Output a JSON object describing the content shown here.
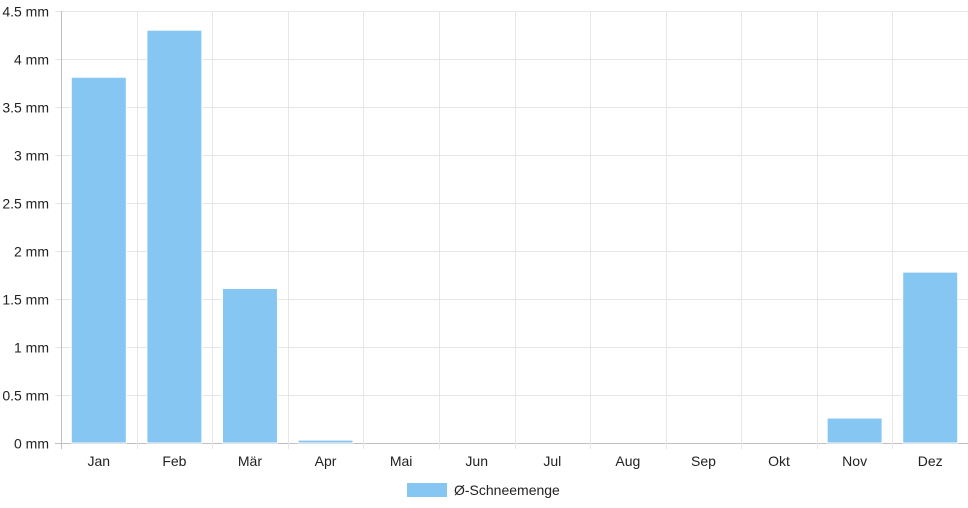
{
  "chart_data": {
    "type": "bar",
    "categories": [
      "Jan",
      "Feb",
      "Mär",
      "Apr",
      "Mai",
      "Jun",
      "Jul",
      "Aug",
      "Sep",
      "Okt",
      "Nov",
      "Dez"
    ],
    "series": [
      {
        "name": "Ø-Schneemenge",
        "values": [
          3.81,
          4.3,
          1.61,
          0.03,
          0,
          0,
          0,
          0,
          0,
          0,
          0.26,
          1.78
        ],
        "color": "#86c6f3"
      }
    ],
    "y_ticks": [
      "0 mm",
      "0.5 mm",
      "1 mm",
      "1.5 mm",
      "2 mm",
      "2.5 mm",
      "3 mm",
      "3.5 mm",
      "4 mm",
      "4.5 mm"
    ],
    "ylim": [
      0,
      4.5
    ],
    "grid": true,
    "legend_position": "bottom"
  }
}
